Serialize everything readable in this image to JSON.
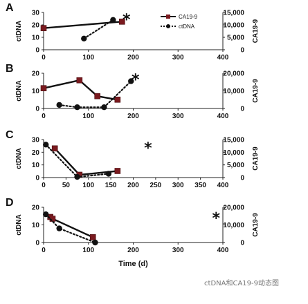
{
  "chart_data": [
    {
      "type": "line",
      "panel_label": "A",
      "xlim": [
        0,
        400
      ],
      "x_ticks": [
        0,
        100,
        200,
        300,
        400
      ],
      "ylim_left": [
        0,
        30
      ],
      "y_ticks_left": [
        0,
        10,
        20,
        30
      ],
      "ylim_right": [
        0,
        15000
      ],
      "y_ticks_right": [
        "0",
        "5,000",
        "10,000",
        "15,000"
      ],
      "y_ticks_right_values": [
        0,
        5000,
        10000,
        15000
      ],
      "ylabel_left": "ctDNA",
      "ylabel_right": "CA19-9",
      "series": [
        {
          "name": "CA19-9",
          "axis": "right",
          "style": "solid-square",
          "x": [
            0,
            175
          ],
          "y": [
            8700,
            11300
          ]
        },
        {
          "name": "ctDNA",
          "axis": "left",
          "style": "dotted-circle",
          "x": [
            90,
            155
          ],
          "y": [
            9,
            24
          ]
        }
      ],
      "annotations": [
        {
          "text": "*",
          "x": 185,
          "y_right": 12600
        }
      ],
      "legend": {
        "position": "top-right",
        "entries": [
          "CA19-9",
          "ctDNA"
        ]
      }
    },
    {
      "type": "line",
      "panel_label": "B",
      "xlim": [
        0,
        400
      ],
      "x_ticks": [
        0,
        100,
        200,
        300,
        400
      ],
      "ylim_left": [
        0,
        20
      ],
      "y_ticks_left": [
        0,
        10,
        20
      ],
      "ylim_right": [
        0,
        20000
      ],
      "y_ticks_right": [
        "0",
        "10,000",
        "20,000"
      ],
      "y_ticks_right_values": [
        0,
        10000,
        20000
      ],
      "ylabel_left": "ctDNA",
      "ylabel_right": "CA19-9",
      "series": [
        {
          "name": "CA19-9",
          "axis": "right",
          "style": "solid-square",
          "x": [
            0,
            80,
            120,
            165
          ],
          "y": [
            11500,
            16000,
            7000,
            5000
          ]
        },
        {
          "name": "ctDNA",
          "axis": "left",
          "style": "dotted-circle",
          "x": [
            35,
            75,
            135,
            195
          ],
          "y": [
            2,
            0.7,
            0.7,
            15.5
          ]
        }
      ],
      "annotations": [
        {
          "text": "*",
          "x": 205,
          "y_right": 17000
        }
      ]
    },
    {
      "type": "line",
      "panel_label": "C",
      "xlim": [
        0,
        400
      ],
      "x_ticks": [
        0,
        50,
        100,
        150,
        200,
        250,
        300,
        350,
        400
      ],
      "ylim_left": [
        0,
        30
      ],
      "y_ticks_left": [
        0,
        10,
        20,
        30
      ],
      "ylim_right": [
        0,
        15000
      ],
      "y_ticks_right": [
        "0",
        "5,000",
        "10,000",
        "15,000"
      ],
      "y_ticks_right_values": [
        0,
        5000,
        10000,
        15000
      ],
      "ylabel_left": "ctDNA",
      "ylabel_right": "CA19-9",
      "series": [
        {
          "name": "CA19-9",
          "axis": "right",
          "style": "solid-square",
          "x": [
            25,
            80,
            165
          ],
          "y": [
            11500,
            1100,
            2600
          ]
        },
        {
          "name": "ctDNA",
          "axis": "left",
          "style": "dotted-circle",
          "x": [
            5,
            75,
            145
          ],
          "y": [
            26,
            0.5,
            3
          ]
        }
      ],
      "annotations": [
        {
          "text": "*",
          "x": 233,
          "y_right": 12200
        }
      ]
    },
    {
      "type": "line",
      "panel_label": "D",
      "xlim": [
        0,
        400
      ],
      "x_ticks": [
        0,
        100,
        200,
        300,
        400
      ],
      "ylim_left": [
        0,
        20
      ],
      "y_ticks_left": [
        0,
        10,
        20
      ],
      "ylim_right": [
        0,
        20000
      ],
      "y_ticks_right": [
        "0",
        "10,000",
        "20,000"
      ],
      "y_ticks_right_values": [
        0,
        10000,
        20000
      ],
      "ylabel_left": "ctDNA",
      "ylabel_right": "CA19-9",
      "xlabel": "Time (d)",
      "series": [
        {
          "name": "CA19-9",
          "axis": "right",
          "style": "solid-square",
          "x": [
            15,
            20,
            110
          ],
          "y": [
            14500,
            13500,
            3000
          ]
        },
        {
          "name": "ctDNA",
          "axis": "left",
          "style": "dotted-circle",
          "x": [
            5,
            35,
            115
          ],
          "y": [
            16,
            8,
            0
          ]
        }
      ],
      "annotations": [
        {
          "text": "*",
          "x": 385,
          "y_right": 14500
        }
      ]
    }
  ],
  "watermark": "ctDNA和CA19-9动态图"
}
